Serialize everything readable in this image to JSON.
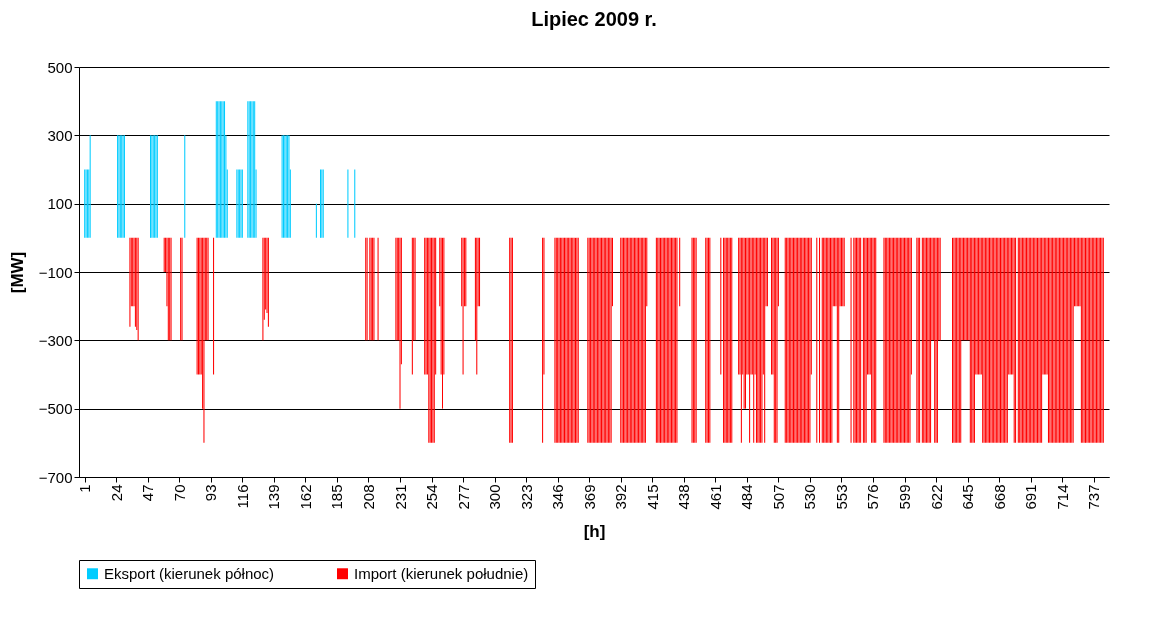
{
  "chart_data": {
    "type": "bar",
    "title": "Lipiec 2009 r.",
    "xlabel": "[h]",
    "ylabel": "[MW]",
    "xlim": [
      0.5,
      744.5
    ],
    "xticks": [
      1,
      24,
      47,
      70,
      93,
      116,
      139,
      162,
      185,
      208,
      231,
      254,
      277,
      300,
      323,
      346,
      369,
      392,
      415,
      438,
      461,
      484,
      507,
      530,
      553,
      576,
      599,
      622,
      645,
      668,
      691,
      714,
      737
    ],
    "ylim": [
      -700,
      500
    ],
    "yticks": [
      500,
      300,
      100,
      -100,
      -300,
      -500,
      -700
    ],
    "grid": "y",
    "legend": "bottom",
    "series": [
      {
        "name": "Eksport (kierunek północ)",
        "color": "#00ccff",
        "x": [
          1,
          2,
          3,
          4,
          5,
          25,
          26,
          27,
          28,
          29,
          30,
          49,
          50,
          51,
          52,
          53,
          54,
          74,
          97,
          98,
          99,
          100,
          101,
          102,
          103,
          104,
          105,
          112,
          113,
          114,
          115,
          116,
          120,
          121,
          122,
          123,
          124,
          125,
          126,
          145,
          146,
          147,
          148,
          149,
          150,
          151,
          170,
          173,
          174,
          175,
          193,
          198
        ],
        "values": [
          200,
          200,
          200,
          200,
          300,
          300,
          300,
          300,
          300,
          300,
          300,
          300,
          300,
          300,
          300,
          300,
          300,
          300,
          400,
          400,
          400,
          400,
          400,
          400,
          400,
          300,
          200,
          200,
          200,
          200,
          200,
          200,
          400,
          400,
          400,
          400,
          400,
          400,
          200,
          300,
          300,
          300,
          300,
          300,
          300,
          200,
          100,
          200,
          200,
          200,
          200,
          200
        ]
      },
      {
        "name": "Import (kierunek południe)",
        "color": "#ff0000",
        "x": [
          34,
          35,
          36,
          37,
          38,
          39,
          40,
          59,
          60,
          61,
          62,
          63,
          64,
          71,
          72,
          83,
          84,
          85,
          86,
          87,
          88,
          89,
          90,
          91,
          95,
          131,
          132,
          133,
          134,
          135,
          206,
          207,
          209,
          210,
          211,
          212,
          215,
          228,
          229,
          230,
          231,
          232,
          240,
          241,
          242,
          249,
          250,
          251,
          252,
          253,
          254,
          255,
          256,
          257,
          260,
          261,
          262,
          263,
          276,
          277,
          278,
          279,
          286,
          287,
          288,
          289,
          311,
          312,
          313,
          335,
          336,
          344,
          345,
          346,
          347,
          348,
          349,
          350,
          351,
          352,
          353,
          354,
          355,
          356,
          357,
          358,
          359,
          360,
          361,
          368,
          369,
          370,
          371,
          372,
          373,
          374,
          375,
          376,
          377,
          378,
          379,
          380,
          381,
          382,
          383,
          384,
          385,
          386,
          392,
          393,
          394,
          395,
          396,
          397,
          398,
          399,
          400,
          401,
          402,
          403,
          404,
          405,
          406,
          407,
          408,
          409,
          410,
          411,
          418,
          419,
          420,
          421,
          422,
          423,
          424,
          425,
          426,
          427,
          428,
          429,
          430,
          431,
          432,
          433,
          435,
          444,
          445,
          446,
          447,
          454,
          455,
          456,
          457,
          465,
          467,
          468,
          469,
          470,
          471,
          472,
          473,
          478,
          479,
          480,
          481,
          482,
          483,
          484,
          485,
          486,
          487,
          488,
          489,
          490,
          491,
          492,
          493,
          494,
          495,
          496,
          497,
          498,
          499,
          502,
          503,
          504,
          505,
          506,
          507,
          512,
          513,
          514,
          515,
          516,
          517,
          518,
          519,
          520,
          521,
          522,
          523,
          524,
          525,
          526,
          527,
          528,
          529,
          530,
          531,
          535,
          537,
          539,
          540,
          541,
          542,
          543,
          544,
          545,
          546,
          547,
          548,
          549,
          550,
          551,
          552,
          553,
          554,
          555,
          560,
          562,
          563,
          564,
          565,
          566,
          567,
          569,
          570,
          571,
          572,
          573,
          574,
          575,
          576,
          577,
          578,
          584,
          585,
          586,
          587,
          588,
          589,
          590,
          591,
          592,
          593,
          594,
          595,
          596,
          597,
          598,
          599,
          600,
          601,
          602,
          603,
          604,
          608,
          609,
          610,
          612,
          613,
          614,
          615,
          616,
          617,
          618,
          619,
          620,
          621,
          622,
          623,
          624,
          625,
          634,
          635,
          636,
          637,
          638,
          639,
          640,
          641,
          642,
          643,
          644,
          645,
          646,
          647,
          648,
          649,
          650,
          651,
          652,
          653,
          654,
          655,
          656,
          657,
          658,
          659,
          660,
          661,
          662,
          663,
          664,
          665,
          666,
          667,
          668,
          669,
          670,
          671,
          672,
          673,
          674,
          675,
          676,
          677,
          678,
          679,
          680,
          682,
          683,
          684,
          685,
          686,
          687,
          688,
          689,
          690,
          691,
          692,
          693,
          694,
          695,
          696,
          697,
          698,
          699,
          700,
          701,
          702,
          703,
          704,
          705,
          706,
          707,
          708,
          709,
          710,
          711,
          712,
          713,
          714,
          715,
          716,
          717,
          718,
          719,
          720,
          721,
          722,
          723,
          724,
          725,
          726,
          727,
          728,
          729,
          730,
          731,
          732,
          733,
          734,
          735,
          736,
          737,
          738,
          739,
          740,
          741,
          742,
          743,
          744
        ],
        "values": [
          -260,
          -200,
          -200,
          -200,
          -260,
          -270,
          -300,
          -100,
          -100,
          -200,
          -300,
          -300,
          -300,
          -300,
          -300,
          -400,
          -400,
          -400,
          -400,
          -500,
          -600,
          -300,
          -300,
          -300,
          -400,
          -300,
          -240,
          -210,
          -220,
          -260,
          -300,
          -300,
          -300,
          -300,
          -300,
          -300,
          -300,
          -300,
          -300,
          -300,
          -500,
          -370,
          -400,
          -300,
          -300,
          -400,
          -400,
          -400,
          -600,
          -600,
          -600,
          -600,
          -600,
          -400,
          -200,
          -400,
          -500,
          -400,
          -200,
          -400,
          -200,
          -200,
          -300,
          -400,
          -200,
          -200,
          -600,
          -600,
          -600,
          -600,
          -400,
          -600,
          -600,
          -600,
          -600,
          -600,
          -600,
          -600,
          -600,
          -600,
          -600,
          -600,
          -600,
          -600,
          -600,
          -600,
          -600,
          -600,
          -600,
          -600,
          -600,
          -600,
          -600,
          -600,
          -600,
          -600,
          -600,
          -600,
          -600,
          -600,
          -600,
          -600,
          -600,
          -600,
          -600,
          -600,
          -600,
          -200,
          -600,
          -600,
          -600,
          -600,
          -600,
          -600,
          -600,
          -600,
          -600,
          -600,
          -600,
          -600,
          -600,
          -600,
          -600,
          -600,
          -600,
          -600,
          -600,
          -200,
          -600,
          -600,
          -600,
          -600,
          -600,
          -600,
          -600,
          -600,
          -600,
          -600,
          -600,
          -600,
          -600,
          -600,
          -600,
          -600,
          -200,
          -600,
          -600,
          -600,
          -600,
          -600,
          -600,
          -600,
          -600,
          -400,
          -600,
          -600,
          -600,
          -600,
          -600,
          -600,
          -600,
          -400,
          -400,
          -600,
          -400,
          -500,
          -500,
          -400,
          -400,
          -600,
          -400,
          -400,
          -600,
          -400,
          -600,
          -600,
          -600,
          -600,
          -600,
          -400,
          -600,
          -200,
          -200,
          -400,
          -400,
          -600,
          -600,
          -600,
          -200,
          -600,
          -600,
          -600,
          -600,
          -600,
          -600,
          -600,
          -600,
          -600,
          -600,
          -600,
          -600,
          -600,
          -600,
          -600,
          -600,
          -600,
          -600,
          -600,
          -400,
          -600,
          -600,
          -600,
          -600,
          -600,
          -600,
          -600,
          -600,
          -600,
          -600,
          -200,
          -200,
          -200,
          -600,
          -600,
          -200,
          -200,
          -200,
          -200,
          -600,
          -600,
          -600,
          -600,
          -600,
          -600,
          -600,
          -600,
          -600,
          -600,
          -400,
          -400,
          -400,
          -600,
          -600,
          -600,
          -600,
          -600,
          -600,
          -600,
          -600,
          -600,
          -600,
          -600,
          -600,
          -600,
          -600,
          -600,
          -600,
          -600,
          -600,
          -600,
          -600,
          -600,
          -600,
          -600,
          -600,
          -400,
          -600,
          -600,
          -600,
          -600,
          -600,
          -600,
          -600,
          -600,
          -600,
          -600,
          -300,
          -300,
          -600,
          -600,
          -600,
          -300,
          -300,
          -600,
          -600,
          -600,
          -600,
          -600,
          -600,
          -600,
          -300,
          -300,
          -300,
          -300,
          -300,
          -300,
          -600,
          -600,
          -600,
          -600,
          -400,
          -400,
          -400,
          -400,
          -400,
          -600,
          -600,
          -600,
          -600,
          -600,
          -600,
          -600,
          -600,
          -600,
          -600,
          -600,
          -600,
          -600,
          -600,
          -600,
          -600,
          -600,
          -600,
          -600,
          -400,
          -400,
          -400,
          -400,
          -600,
          -600,
          -600,
          -600,
          -600,
          -600,
          -600,
          -600,
          -600,
          -600,
          -600,
          -600,
          -600,
          -600,
          -600,
          -600,
          -600,
          -600,
          -600,
          -600,
          -400,
          -400,
          -400,
          -400,
          -600,
          -600,
          -600,
          -600,
          -600,
          -600,
          -600,
          -600,
          -600,
          -600,
          -600,
          -600,
          -600,
          -600,
          -600,
          -600,
          -600,
          -600,
          -600,
          -200,
          -200,
          -200,
          -200,
          -200,
          -600,
          -600,
          -600,
          -600,
          -600,
          -600,
          -600,
          -600,
          -600,
          -600,
          -600,
          -600,
          -600,
          -600,
          -600,
          -600,
          -600
        ]
      }
    ]
  }
}
